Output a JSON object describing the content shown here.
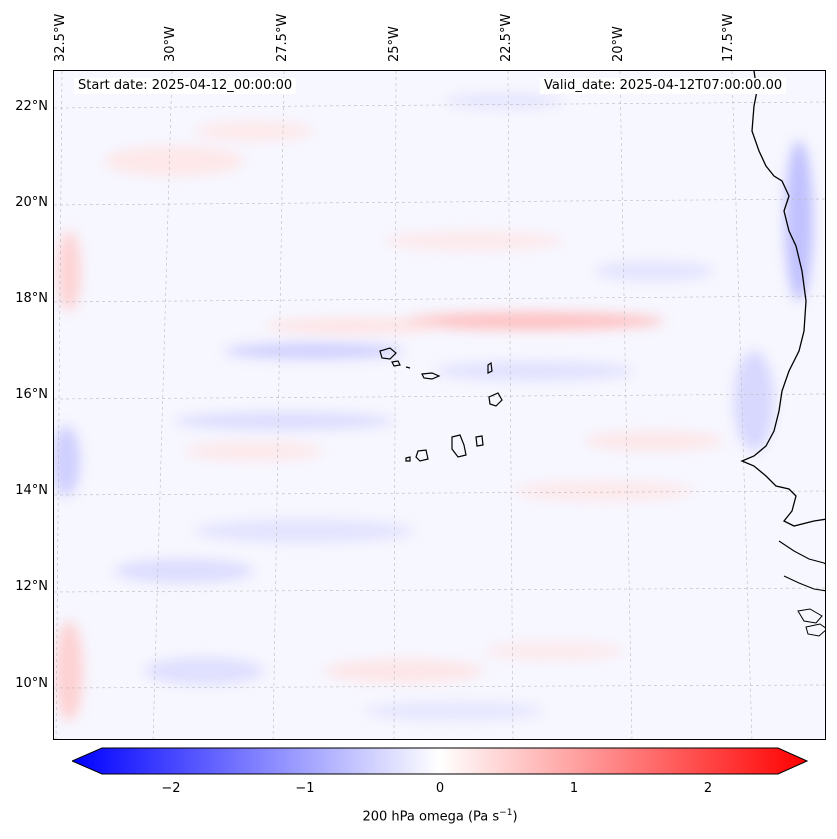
{
  "header": {
    "start_date": "Start date: 2025-04-12_00:00:00",
    "valid_date": "Valid_date: 2025-04-12T07:00:00.00"
  },
  "lat_labels": [
    "22°N",
    "20°N",
    "18°N",
    "16°N",
    "14°N",
    "12°N",
    "10°N"
  ],
  "lon_labels": [
    "32.5°W",
    "30°W",
    "27.5°W",
    "25°W",
    "22.5°W",
    "20°W",
    "17.5°W"
  ],
  "colorbar": {
    "ticks": [
      "−2",
      "−1",
      "0",
      "1",
      "2"
    ],
    "label": "200 hPa omega (Pa s",
    "label_sup": "−1",
    "label_close": ")",
    "min": -2.5,
    "max": 2.5,
    "neg_color": "#0000ff",
    "pos_color": "#ff0000",
    "mid_color": "#ffffff"
  },
  "map": {
    "variable": "200 hPa omega",
    "features": [
      "Cape Verde islands",
      "West African coastline"
    ]
  }
}
